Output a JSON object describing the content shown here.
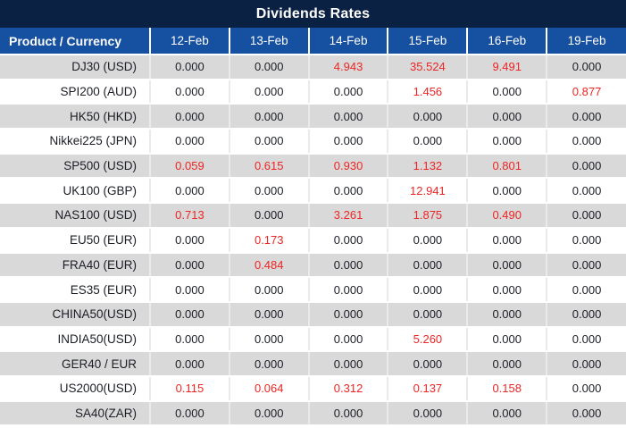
{
  "title": "Dividends Rates",
  "table": {
    "product_header": "Product / Currency",
    "date_headers": [
      "12-Feb",
      "13-Feb",
      "14-Feb",
      "15-Feb",
      "16-Feb",
      "19-Feb"
    ],
    "rows": [
      {
        "product": "DJ30 (USD)",
        "values": [
          "0.000",
          "0.000",
          "4.943",
          "35.524",
          "9.491",
          "0.000"
        ],
        "red": [
          false,
          false,
          true,
          true,
          true,
          false
        ]
      },
      {
        "product": "SPI200 (AUD)",
        "values": [
          "0.000",
          "0.000",
          "0.000",
          "1.456",
          "0.000",
          "0.877"
        ],
        "red": [
          false,
          false,
          false,
          true,
          false,
          true
        ]
      },
      {
        "product": "HK50 (HKD)",
        "values": [
          "0.000",
          "0.000",
          "0.000",
          "0.000",
          "0.000",
          "0.000"
        ],
        "red": [
          false,
          false,
          false,
          false,
          false,
          false
        ]
      },
      {
        "product": "Nikkei225 (JPN)",
        "values": [
          "0.000",
          "0.000",
          "0.000",
          "0.000",
          "0.000",
          "0.000"
        ],
        "red": [
          false,
          false,
          false,
          false,
          false,
          false
        ]
      },
      {
        "product": "SP500 (USD)",
        "values": [
          "0.059",
          "0.615",
          "0.930",
          "1.132",
          "0.801",
          "0.000"
        ],
        "red": [
          true,
          true,
          true,
          true,
          true,
          false
        ]
      },
      {
        "product": "UK100 (GBP)",
        "values": [
          "0.000",
          "0.000",
          "0.000",
          "12.941",
          "0.000",
          "0.000"
        ],
        "red": [
          false,
          false,
          false,
          true,
          false,
          false
        ]
      },
      {
        "product": "NAS100 (USD)",
        "values": [
          "0.713",
          "0.000",
          "3.261",
          "1.875",
          "0.490",
          "0.000"
        ],
        "red": [
          true,
          false,
          true,
          true,
          true,
          false
        ]
      },
      {
        "product": "EU50 (EUR)",
        "values": [
          "0.000",
          "0.173",
          "0.000",
          "0.000",
          "0.000",
          "0.000"
        ],
        "red": [
          false,
          true,
          false,
          false,
          false,
          false
        ]
      },
      {
        "product": "FRA40 (EUR)",
        "values": [
          "0.000",
          "0.484",
          "0.000",
          "0.000",
          "0.000",
          "0.000"
        ],
        "red": [
          false,
          true,
          false,
          false,
          false,
          false
        ]
      },
      {
        "product": "ES35 (EUR)",
        "values": [
          "0.000",
          "0.000",
          "0.000",
          "0.000",
          "0.000",
          "0.000"
        ],
        "red": [
          false,
          false,
          false,
          false,
          false,
          false
        ]
      },
      {
        "product": "CHINA50(USD)",
        "values": [
          "0.000",
          "0.000",
          "0.000",
          "0.000",
          "0.000",
          "0.000"
        ],
        "red": [
          false,
          false,
          false,
          false,
          false,
          false
        ]
      },
      {
        "product": "INDIA50(USD)",
        "values": [
          "0.000",
          "0.000",
          "0.000",
          "5.260",
          "0.000",
          "0.000"
        ],
        "red": [
          false,
          false,
          false,
          true,
          false,
          false
        ]
      },
      {
        "product": "GER40 / EUR",
        "values": [
          "0.000",
          "0.000",
          "0.000",
          "0.000",
          "0.000",
          "0.000"
        ],
        "red": [
          false,
          false,
          false,
          false,
          false,
          false
        ]
      },
      {
        "product": "US2000(USD)",
        "values": [
          "0.115",
          "0.064",
          "0.312",
          "0.137",
          "0.158",
          "0.000"
        ],
        "red": [
          true,
          true,
          true,
          true,
          true,
          false
        ]
      },
      {
        "product": "SA40(ZAR)",
        "values": [
          "0.000",
          "0.000",
          "0.000",
          "0.000",
          "0.000",
          "0.000"
        ],
        "red": [
          false,
          false,
          false,
          false,
          false,
          false
        ]
      }
    ]
  },
  "colors": {
    "title_bg": "#0b2143",
    "header_bg": "#1650a0",
    "alt_row_bg": "#d9d9d9",
    "row_bg": "#ffffff",
    "value_red": "#ee2524",
    "value_dark": "#1c1e26",
    "header_text": "#ffffff"
  }
}
